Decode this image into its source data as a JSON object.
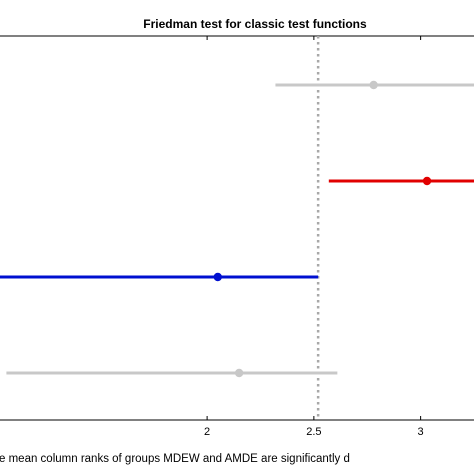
{
  "chart_data": {
    "type": "interval",
    "title": "Friedman test for classic test functions",
    "footnote": "e mean column ranks of groups MDEW and AMDE are significantly d",
    "xlim": [
      1.03,
      3.25
    ],
    "x_ticks": [
      2,
      2.5,
      3
    ],
    "x_tick_labels": [
      "2",
      "2.5",
      "3"
    ],
    "reference_line_x": 2.52,
    "groups": [
      {
        "mean": 2.78,
        "low": 2.32,
        "high": 3.25,
        "color": "#c8c8c8"
      },
      {
        "mean": 3.03,
        "low": 2.57,
        "high": 3.25,
        "color": "#e10000"
      },
      {
        "mean": 2.05,
        "low": 1.03,
        "high": 2.52,
        "color": "#0010d0"
      },
      {
        "mean": 2.15,
        "low": 1.06,
        "high": 2.61,
        "color": "#c8c8c8"
      }
    ],
    "grid": false,
    "legend": "none"
  }
}
